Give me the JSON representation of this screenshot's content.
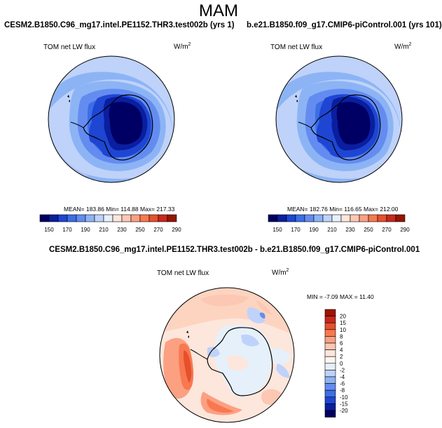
{
  "page": {
    "title": "MAM"
  },
  "panels": [
    {
      "title": "CESM2.B1850.C96_mg17.intel.PE1152.THR3.test002b (yrs 1)",
      "variable": "TOM net LW flux",
      "units": "W/m",
      "units_exp": "2",
      "stats": "MEAN= 183.86  Min= 114.88  Max= 217.33"
    },
    {
      "title": "b.e21.B1850.f09_g17.CMIP6-piControl.001 (yrs 101)",
      "variable": "TOM net LW flux",
      "units": "W/m",
      "units_exp": "2",
      "stats": "MEAN= 182.76  Min= 116.65  Max= 212.00"
    },
    {
      "title": "CESM2.B1850.C96_mg17.intel.PE1152.THR3.test002b - b.e21.B1850.f09_g17.CMIP6-piControl.001",
      "variable": "TOM net LW flux",
      "units": "W/m",
      "units_exp": "2",
      "stats": "MIN = -7.09 MAX =  11.40"
    }
  ],
  "abs_colorbar": {
    "labels": [
      "150",
      "170",
      "190",
      "210",
      "230",
      "250",
      "270",
      "290"
    ],
    "colors": [
      "#000064",
      "#0a1ea0",
      "#1e46d2",
      "#3c6ee6",
      "#648cf0",
      "#8cb4f5",
      "#bed2fa",
      "#e6f0fa",
      "#fde6dc",
      "#fcc8b4",
      "#fca082",
      "#f87850",
      "#e6502d",
      "#c8281e",
      "#961400"
    ]
  },
  "diff_colorbar": {
    "labels": [
      "20",
      "15",
      "10",
      "8",
      "6",
      "4",
      "2",
      "0",
      "-2",
      "-4",
      "-6",
      "-8",
      "-10",
      "-15",
      "-20"
    ],
    "colors": [
      "#a01400",
      "#c8281e",
      "#e6502d",
      "#f87850",
      "#fca082",
      "#fcc8b4",
      "#fde6dc",
      "#fff5f0",
      "#e6f0fa",
      "#bed2fa",
      "#8cb4f5",
      "#648cf0",
      "#3c6ee6",
      "#1e46d2",
      "#0a1ea0",
      "#000064"
    ]
  }
}
